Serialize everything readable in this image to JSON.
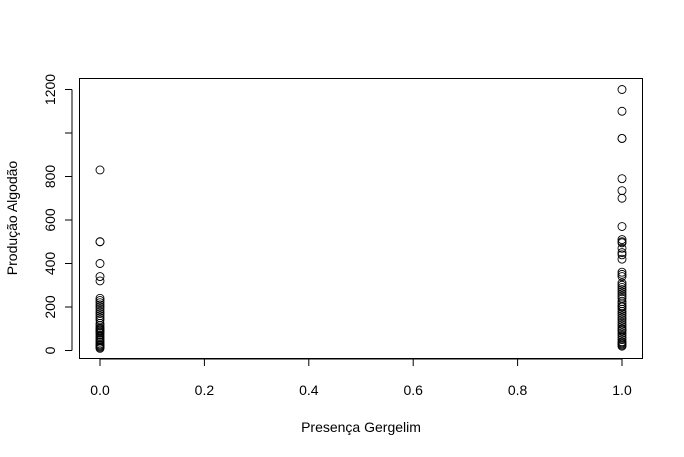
{
  "chart_data": {
    "type": "scatter",
    "title": "",
    "xlabel": "Presença Gergelim",
    "ylabel": "Produção Algodão",
    "xlim": [
      0,
      1
    ],
    "ylim": [
      0,
      1200
    ],
    "x_ticks": [
      0.0,
      0.2,
      0.4,
      0.6,
      0.8,
      1.0
    ],
    "x_tick_labels": [
      "0.0",
      "0.2",
      "0.4",
      "0.6",
      "0.8",
      "1.0"
    ],
    "y_ticks": [
      0,
      200,
      400,
      600,
      800,
      1000,
      1200
    ],
    "y_tick_labels": [
      "0",
      "200",
      "400",
      "600",
      "800",
      "",
      "1200"
    ],
    "grid": false,
    "points": [
      {
        "x": 0,
        "y": 830
      },
      {
        "x": 0,
        "y": 500
      },
      {
        "x": 0,
        "y": 500
      },
      {
        "x": 0,
        "y": 400
      },
      {
        "x": 0,
        "y": 340
      },
      {
        "x": 0,
        "y": 320
      },
      {
        "x": 0,
        "y": 240
      },
      {
        "x": 0,
        "y": 230
      },
      {
        "x": 0,
        "y": 220
      },
      {
        "x": 0,
        "y": 210
      },
      {
        "x": 0,
        "y": 200
      },
      {
        "x": 0,
        "y": 190
      },
      {
        "x": 0,
        "y": 180
      },
      {
        "x": 0,
        "y": 170
      },
      {
        "x": 0,
        "y": 160
      },
      {
        "x": 0,
        "y": 150
      },
      {
        "x": 0,
        "y": 140
      },
      {
        "x": 0,
        "y": 125
      },
      {
        "x": 0,
        "y": 115
      },
      {
        "x": 0,
        "y": 105
      },
      {
        "x": 0,
        "y": 100
      },
      {
        "x": 0,
        "y": 95
      },
      {
        "x": 0,
        "y": 90
      },
      {
        "x": 0,
        "y": 85
      },
      {
        "x": 0,
        "y": 80
      },
      {
        "x": 0,
        "y": 72
      },
      {
        "x": 0,
        "y": 65
      },
      {
        "x": 0,
        "y": 58
      },
      {
        "x": 0,
        "y": 50
      },
      {
        "x": 0,
        "y": 45
      },
      {
        "x": 0,
        "y": 38
      },
      {
        "x": 0,
        "y": 30
      },
      {
        "x": 0,
        "y": 25
      },
      {
        "x": 0,
        "y": 20
      },
      {
        "x": 0,
        "y": 15
      },
      {
        "x": 0,
        "y": 10
      },
      {
        "x": 1,
        "y": 1200
      },
      {
        "x": 1,
        "y": 1100
      },
      {
        "x": 1,
        "y": 975
      },
      {
        "x": 1,
        "y": 975
      },
      {
        "x": 1,
        "y": 790
      },
      {
        "x": 1,
        "y": 735
      },
      {
        "x": 1,
        "y": 700
      },
      {
        "x": 1,
        "y": 570
      },
      {
        "x": 1,
        "y": 510
      },
      {
        "x": 1,
        "y": 500
      },
      {
        "x": 1,
        "y": 495
      },
      {
        "x": 1,
        "y": 470
      },
      {
        "x": 1,
        "y": 450
      },
      {
        "x": 1,
        "y": 440
      },
      {
        "x": 1,
        "y": 420
      },
      {
        "x": 1,
        "y": 360
      },
      {
        "x": 1,
        "y": 350
      },
      {
        "x": 1,
        "y": 340
      },
      {
        "x": 1,
        "y": 310
      },
      {
        "x": 1,
        "y": 300
      },
      {
        "x": 1,
        "y": 290
      },
      {
        "x": 1,
        "y": 280
      },
      {
        "x": 1,
        "y": 270
      },
      {
        "x": 1,
        "y": 260
      },
      {
        "x": 1,
        "y": 250
      },
      {
        "x": 1,
        "y": 240
      },
      {
        "x": 1,
        "y": 225
      },
      {
        "x": 1,
        "y": 215
      },
      {
        "x": 1,
        "y": 205
      },
      {
        "x": 1,
        "y": 200
      },
      {
        "x": 1,
        "y": 190
      },
      {
        "x": 1,
        "y": 180
      },
      {
        "x": 1,
        "y": 170
      },
      {
        "x": 1,
        "y": 160
      },
      {
        "x": 1,
        "y": 150
      },
      {
        "x": 1,
        "y": 140
      },
      {
        "x": 1,
        "y": 130
      },
      {
        "x": 1,
        "y": 120
      },
      {
        "x": 1,
        "y": 110
      },
      {
        "x": 1,
        "y": 100
      },
      {
        "x": 1,
        "y": 95
      },
      {
        "x": 1,
        "y": 90
      },
      {
        "x": 1,
        "y": 80
      },
      {
        "x": 1,
        "y": 70
      },
      {
        "x": 1,
        "y": 60
      },
      {
        "x": 1,
        "y": 50
      },
      {
        "x": 1,
        "y": 40
      },
      {
        "x": 1,
        "y": 35
      },
      {
        "x": 1,
        "y": 30
      },
      {
        "x": 1,
        "y": 25
      },
      {
        "x": 1,
        "y": 20
      }
    ]
  }
}
